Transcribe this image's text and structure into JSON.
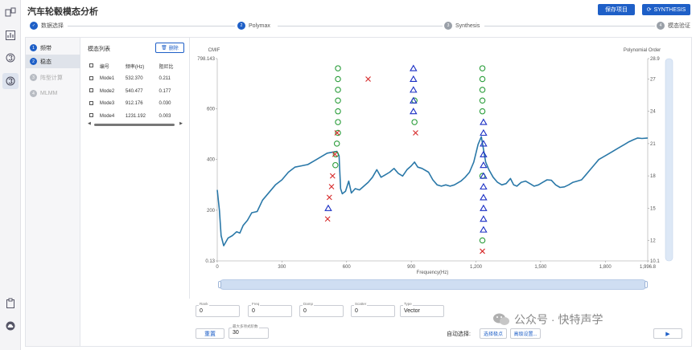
{
  "app": {
    "title": "汽车轮毂模态分析",
    "save_label": "保存项目",
    "synthesis_label": "SYNTHESIS"
  },
  "stepper": {
    "steps": [
      {
        "num": "1",
        "label": "数据选择"
      },
      {
        "num": "2",
        "label": "Polymax"
      },
      {
        "num": "3",
        "label": "Synthesis"
      },
      {
        "num": "4",
        "label": "模态验证"
      }
    ]
  },
  "side_menu": {
    "items": [
      {
        "num": "1",
        "label": "频带"
      },
      {
        "num": "2",
        "label": "稳态"
      },
      {
        "num": "3",
        "label": "阵型计算"
      },
      {
        "num": "4",
        "label": "MLMM"
      }
    ]
  },
  "modes": {
    "title": "模态列表",
    "delete_label": "删除",
    "headers": [
      "编号",
      "频率(Hz)",
      "阻尼比"
    ],
    "rows": [
      [
        "Mode1",
        "532.370",
        "0.211"
      ],
      [
        "Mode2",
        "540.477",
        "0.177"
      ],
      [
        "Mode3",
        "912.176",
        "0.030"
      ],
      [
        "Mode4",
        "1231.192",
        "0.003"
      ]
    ]
  },
  "chart_data": {
    "type": "line",
    "ylabel_left": "CMIF",
    "ylabel_right": "Polynomial Order",
    "xlabel": "Frequency(Hz)",
    "x_ticks": [
      "0",
      "300",
      "600",
      "900",
      "1,200",
      "1,500",
      "1,800",
      "1,996.8"
    ],
    "y_left_ticks": [
      "0.13",
      "200",
      "400",
      "600",
      "798.143"
    ],
    "y_right_ticks": [
      "10.1",
      "12",
      "15",
      "18",
      "21",
      "24",
      "27",
      "28.9"
    ],
    "xlim": [
      0,
      1996.8
    ],
    "ylim_left": [
      0.13,
      798.143
    ],
    "ylim_right": [
      10.1,
      28.9
    ],
    "series": [
      {
        "values": [
          [
            0,
            280
          ],
          [
            10,
            200
          ],
          [
            18,
            100
          ],
          [
            30,
            60
          ],
          [
            50,
            90
          ],
          [
            70,
            100
          ],
          [
            90,
            115
          ],
          [
            105,
            110
          ],
          [
            120,
            140
          ],
          [
            140,
            160
          ],
          [
            160,
            190
          ],
          [
            185,
            195
          ],
          [
            210,
            240
          ],
          [
            240,
            270
          ],
          [
            270,
            300
          ],
          [
            300,
            320
          ],
          [
            330,
            350
          ],
          [
            360,
            370
          ],
          [
            390,
            375
          ],
          [
            420,
            380
          ],
          [
            450,
            395
          ],
          [
            480,
            410
          ],
          [
            510,
            425
          ],
          [
            540,
            430
          ],
          [
            555,
            432
          ],
          [
            565,
            415
          ],
          [
            572,
            285
          ],
          [
            580,
            265
          ],
          [
            595,
            275
          ],
          [
            610,
            315
          ],
          [
            622,
            268
          ],
          [
            640,
            285
          ],
          [
            660,
            280
          ],
          [
            680,
            295
          ],
          [
            700,
            310
          ],
          [
            720,
            330
          ],
          [
            740,
            360
          ],
          [
            760,
            330
          ],
          [
            780,
            340
          ],
          [
            800,
            350
          ],
          [
            820,
            365
          ],
          [
            840,
            345
          ],
          [
            860,
            335
          ],
          [
            880,
            360
          ],
          [
            900,
            375
          ],
          [
            915,
            390
          ],
          [
            930,
            370
          ],
          [
            950,
            365
          ],
          [
            980,
            350
          ],
          [
            1000,
            320
          ],
          [
            1020,
            300
          ],
          [
            1040,
            295
          ],
          [
            1060,
            300
          ],
          [
            1080,
            295
          ],
          [
            1100,
            300
          ],
          [
            1130,
            315
          ],
          [
            1150,
            330
          ],
          [
            1170,
            350
          ],
          [
            1190,
            390
          ],
          [
            1210,
            460
          ],
          [
            1225,
            490
          ],
          [
            1235,
            440
          ],
          [
            1245,
            390
          ],
          [
            1260,
            360
          ],
          [
            1280,
            330
          ],
          [
            1300,
            310
          ],
          [
            1320,
            300
          ],
          [
            1340,
            305
          ],
          [
            1360,
            325
          ],
          [
            1375,
            300
          ],
          [
            1390,
            295
          ],
          [
            1410,
            310
          ],
          [
            1430,
            315
          ],
          [
            1450,
            305
          ],
          [
            1470,
            295
          ],
          [
            1490,
            300
          ],
          [
            1510,
            310
          ],
          [
            1530,
            320
          ],
          [
            1550,
            318
          ],
          [
            1570,
            300
          ],
          [
            1590,
            290
          ],
          [
            1610,
            292
          ],
          [
            1630,
            300
          ],
          [
            1650,
            310
          ],
          [
            1670,
            315
          ],
          [
            1690,
            320
          ],
          [
            1710,
            340
          ],
          [
            1730,
            360
          ],
          [
            1750,
            380
          ],
          [
            1770,
            400
          ],
          [
            1790,
            410
          ],
          [
            1810,
            420
          ],
          [
            1830,
            430
          ],
          [
            1850,
            440
          ],
          [
            1870,
            450
          ],
          [
            1890,
            460
          ],
          [
            1910,
            470
          ],
          [
            1930,
            478
          ],
          [
            1950,
            485
          ],
          [
            1970,
            483
          ],
          [
            1996.8,
            485
          ]
        ]
      }
    ],
    "stability_markers": {
      "circle": [
        [
          560,
          28
        ],
        [
          560,
          27
        ],
        [
          560,
          26
        ],
        [
          560,
          25
        ],
        [
          560,
          24
        ],
        [
          560,
          23
        ],
        [
          560,
          22
        ],
        [
          555,
          21
        ],
        [
          550,
          20
        ],
        [
          548,
          19
        ],
        [
          915,
          25
        ],
        [
          915,
          23
        ],
        [
          1230,
          28
        ],
        [
          1230,
          27
        ],
        [
          1230,
          26
        ],
        [
          1230,
          25
        ],
        [
          1230,
          24
        ],
        [
          1230,
          18
        ],
        [
          1230,
          12
        ]
      ],
      "cross": [
        [
          700,
          27
        ],
        [
          556,
          22
        ],
        [
          546,
          20
        ],
        [
          535,
          18
        ],
        [
          530,
          17
        ],
        [
          520,
          16
        ],
        [
          512,
          14
        ],
        [
          920,
          22
        ],
        [
          1230,
          11
        ]
      ],
      "triangle": [
        [
          910,
          28
        ],
        [
          910,
          27
        ],
        [
          910,
          26
        ],
        [
          910,
          25
        ],
        [
          910,
          24
        ],
        [
          1235,
          23
        ],
        [
          1235,
          22
        ],
        [
          1235,
          21
        ],
        [
          1235,
          20
        ],
        [
          1235,
          19
        ],
        [
          1235,
          18
        ],
        [
          1235,
          17
        ],
        [
          1235,
          16
        ],
        [
          1235,
          15
        ],
        [
          1235,
          14
        ],
        [
          1235,
          13
        ],
        [
          515,
          15
        ]
      ]
    }
  },
  "params": {
    "rank_label": "Rank",
    "rank_value": "0",
    "freq_label": "Freq",
    "freq_value": "0",
    "damp_label": "Damp",
    "damp_value": "0",
    "scatter_label": "Scatter",
    "scatter_value": "0",
    "type_label": "Type",
    "type_value": "Vector",
    "max_order_label": "最大多项式阶数",
    "max_order_value": "30"
  },
  "footer": {
    "reset_label": "重置",
    "auto_select_label": "自动选择:",
    "select_poles_label": "选择极点",
    "advanced_label": "高级设置...",
    "play_icon": "▶"
  },
  "watermark": {
    "text": "公众号 · 快特声学"
  },
  "colors": {
    "accent": "#1e5fc7",
    "line": "#2a78a8",
    "circle": "#2a9d3a",
    "cross": "#d62828",
    "triangle": "#1a2fc4"
  }
}
